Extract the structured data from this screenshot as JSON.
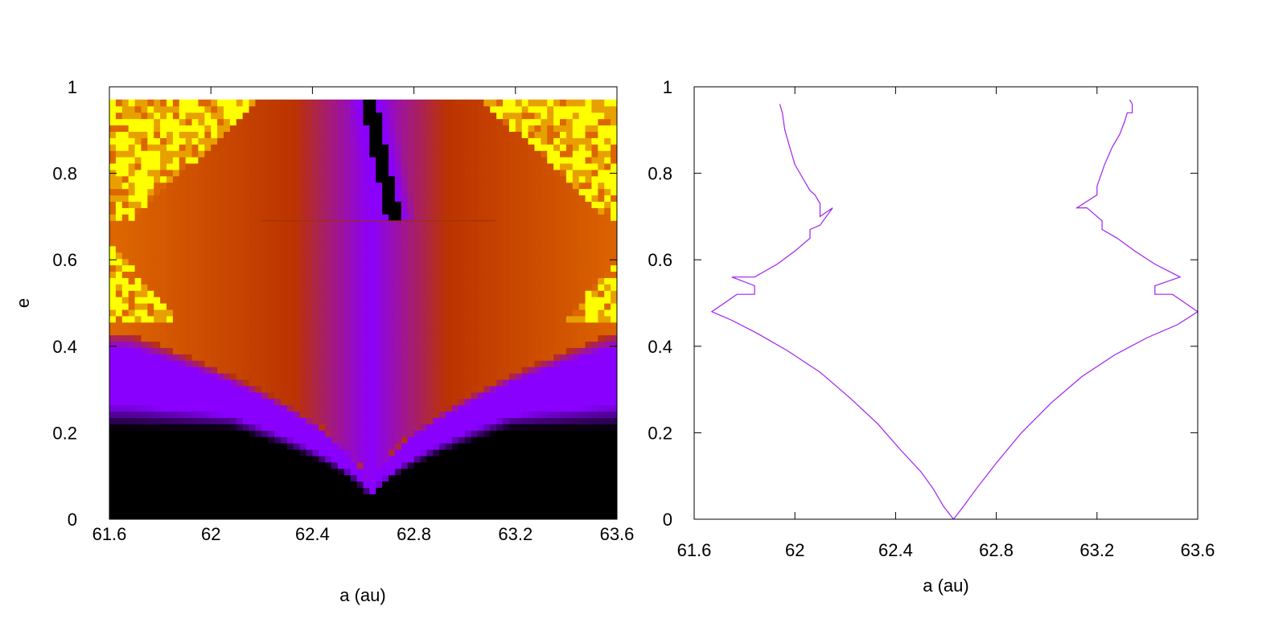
{
  "chart_data": [
    {
      "type": "heatmap",
      "xlabel": "a (au)",
      "ylabel": "e",
      "xlim": [
        61.6,
        63.6
      ],
      "ylim": [
        0,
        1
      ],
      "xticks": [
        "61.6",
        "62",
        "62.4",
        "62.8",
        "63.2",
        "63.6"
      ],
      "yticks": [
        "0",
        "0.2",
        "0.4",
        "0.6",
        "0.8",
        "1"
      ],
      "grid": false,
      "colors": {
        "low": "#000000",
        "mid_low": "#8a00ff",
        "mid": "#bb3300",
        "mid_high": "#dd6600",
        "high": "#ffff00",
        "chaotic_speckle": "#e8a000"
      },
      "features": {
        "resonance_center_a": 62.63,
        "black_region_top_e": 0.21,
        "purple_band_top_e": 0.43,
        "speckled_chaotic_regions": "left and right, above e≈0.45",
        "horizontal_discontinuity_e": 0.69,
        "dark_inclined_line": {
          "a": [
            62.62,
            62.72
          ],
          "e": [
            0.97,
            0.7
          ]
        }
      }
    },
    {
      "type": "line",
      "xlabel": "a (au)",
      "ylabel": "",
      "xlim": [
        61.6,
        63.6
      ],
      "ylim": [
        0,
        1
      ],
      "xticks": [
        "61.6",
        "62",
        "62.4",
        "62.8",
        "63.2",
        "63.6"
      ],
      "yticks": [
        "0",
        "0.2",
        "0.4",
        "0.6",
        "0.8",
        "1"
      ],
      "grid": false,
      "line_color": "#a020f0",
      "series": [
        {
          "x": [
            61.94,
            61.95,
            61.96,
            61.98,
            62.0,
            62.03,
            62.06,
            62.08,
            62.1,
            62.1,
            62.15,
            62.1,
            62.06,
            62.06,
            62.0,
            61.93,
            61.84,
            61.75,
            61.84,
            61.84,
            61.77,
            61.67,
            61.75,
            61.85,
            61.97,
            62.1,
            62.22,
            62.33,
            62.42,
            62.5,
            62.55,
            62.59,
            62.63
          ],
          "y": [
            0.96,
            0.94,
            0.9,
            0.86,
            0.82,
            0.79,
            0.76,
            0.75,
            0.73,
            0.7,
            0.72,
            0.68,
            0.67,
            0.65,
            0.62,
            0.59,
            0.56,
            0.56,
            0.54,
            0.52,
            0.52,
            0.48,
            0.46,
            0.43,
            0.39,
            0.34,
            0.28,
            0.22,
            0.16,
            0.11,
            0.07,
            0.03,
            0.0
          ]
        },
        {
          "x": [
            62.63,
            62.67,
            62.72,
            62.8,
            62.9,
            63.02,
            63.14,
            63.27,
            63.4,
            63.52,
            63.6,
            63.5,
            63.43,
            63.43,
            63.53,
            63.43,
            63.35,
            63.28,
            63.22,
            63.22,
            63.16,
            63.12,
            63.2,
            63.2,
            63.23,
            63.26,
            63.29,
            63.31,
            63.32,
            63.34,
            63.34,
            63.33
          ],
          "y": [
            0.0,
            0.03,
            0.07,
            0.13,
            0.2,
            0.27,
            0.33,
            0.38,
            0.42,
            0.45,
            0.48,
            0.52,
            0.52,
            0.54,
            0.56,
            0.59,
            0.62,
            0.65,
            0.67,
            0.69,
            0.72,
            0.72,
            0.75,
            0.77,
            0.82,
            0.86,
            0.89,
            0.92,
            0.94,
            0.94,
            0.96,
            0.97
          ]
        }
      ]
    }
  ]
}
